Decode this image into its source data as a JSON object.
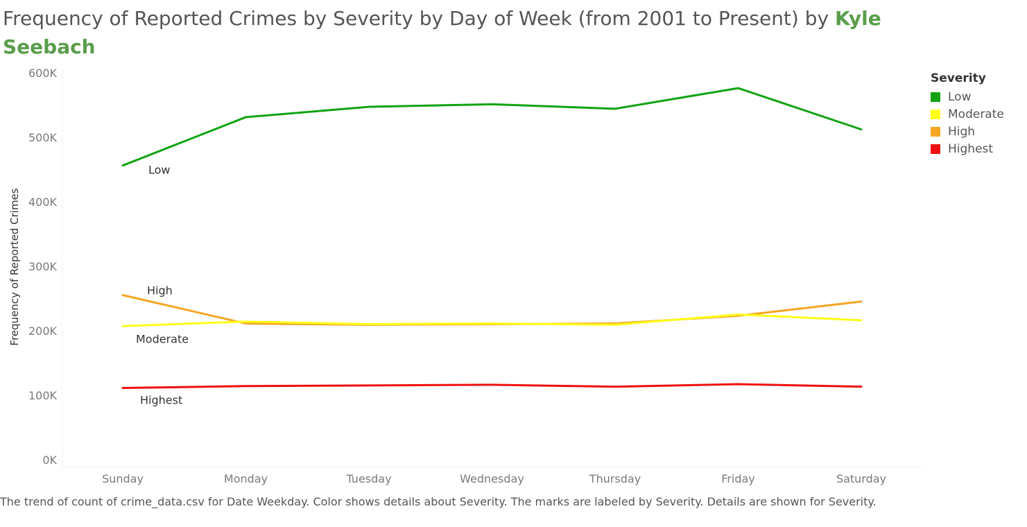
{
  "title": {
    "text": "Frequency of Reported Crimes by Severity by Day of Week (from 2001 to Present) by ",
    "author": "Kyle Seebach"
  },
  "chart_data": {
    "type": "line",
    "categories": [
      "Sunday",
      "Monday",
      "Tuesday",
      "Wednesday",
      "Thursday",
      "Friday",
      "Saturday"
    ],
    "series": [
      {
        "name": "Low",
        "color": "#11a311",
        "values": [
          467000,
          542000,
          558000,
          562000,
          555000,
          587000,
          523000
        ]
      },
      {
        "name": "Moderate",
        "color": "#ffff1a",
        "values": [
          218000,
          225000,
          221000,
          222000,
          220000,
          236000,
          227000
        ]
      },
      {
        "name": "High",
        "color": "#f5a623",
        "values": [
          266000,
          222000,
          220000,
          221000,
          222000,
          234000,
          256000
        ]
      },
      {
        "name": "Highest",
        "color": "#ee1010",
        "values": [
          122000,
          125000,
          126000,
          127000,
          124000,
          128000,
          124000
        ]
      }
    ],
    "ylabel": "Frequency of Reported Crimes",
    "xlabel": "",
    "ylim": [
      0,
      620000
    ],
    "yticks": [
      0,
      100000,
      200000,
      300000,
      400000,
      500000,
      600000
    ],
    "ytick_labels": [
      "0K",
      "100K",
      "200K",
      "300K",
      "400K",
      "500K",
      "600K"
    ],
    "legend": {
      "title": "Severity",
      "placement": "top-right"
    },
    "mark_labels": [
      "Low",
      "Moderate",
      "High",
      "Highest"
    ]
  },
  "caption": "The trend of count of crime_data.csv for Date Weekday.  Color shows details about Severity.  The marks are labeled by Severity.  Details are shown for Severity."
}
